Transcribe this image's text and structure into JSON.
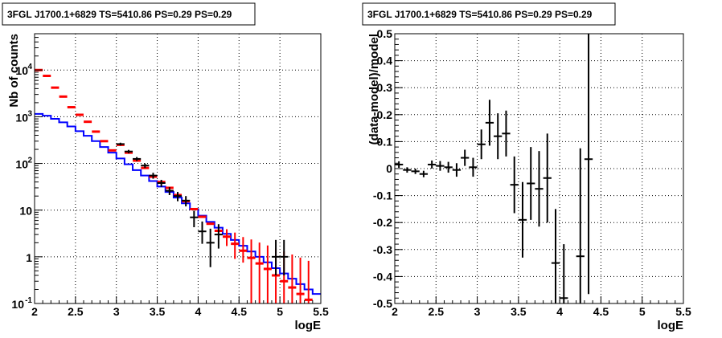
{
  "chart_data": [
    {
      "type": "line",
      "title": "3FGL J1700.1+6829 TS=5410.86 PS=0.29 PS=0.29",
      "xlabel": "logE",
      "ylabel": "Nb of counts",
      "xlim": [
        2,
        5.5
      ],
      "ylim": [
        0.1,
        60000
      ],
      "yscale": "log",
      "grid": true,
      "x_ticks": [
        "2",
        "2.5",
        "3",
        "3.5",
        "4",
        "4.5",
        "5",
        "5.5"
      ],
      "y_ticks": [
        {
          "value": 0.1,
          "base": "10",
          "exp": "-1"
        },
        {
          "value": 1,
          "base": "1",
          "exp": ""
        },
        {
          "value": 10,
          "base": "10",
          "exp": ""
        },
        {
          "value": 100,
          "base": "10",
          "exp": "2"
        },
        {
          "value": 1000,
          "base": "10",
          "exp": "3"
        },
        {
          "value": 10000,
          "base": "10",
          "exp": "4"
        }
      ],
      "series": [
        {
          "color": "#0000ff",
          "style": "histogram",
          "bins": [
            2.0,
            2.1,
            2.2,
            2.3,
            2.4,
            2.5,
            2.6,
            2.7,
            2.8,
            2.9,
            3.0,
            3.1,
            3.2,
            3.3,
            3.4,
            3.5,
            3.6,
            3.7,
            3.8,
            3.9,
            4.0,
            4.1,
            4.2,
            4.3,
            4.4,
            4.5,
            4.6,
            4.7,
            4.8,
            4.9,
            5.0,
            5.1,
            5.2,
            5.3,
            5.4,
            5.5
          ],
          "values": [
            1150,
            1050,
            900,
            760,
            620,
            490,
            390,
            300,
            225,
            170,
            128,
            96,
            72,
            55,
            42,
            32,
            24.5,
            18.5,
            14,
            10.5,
            7.6,
            5.6,
            4.2,
            3.1,
            2.3,
            1.72,
            1.3,
            1.0,
            0.76,
            0.57,
            0.44,
            0.34,
            0.26,
            0.2,
            0.16
          ]
        },
        {
          "color": "#ff0000",
          "style": "markers",
          "x": [
            2.05,
            2.15,
            2.25,
            2.35,
            2.45,
            2.55,
            2.65,
            2.75,
            2.85,
            2.95,
            3.05,
            3.15,
            3.25,
            3.35,
            3.45,
            3.55,
            3.65,
            3.75,
            3.85,
            3.95,
            4.05,
            4.15,
            4.25,
            4.35,
            4.45,
            4.55,
            4.65,
            4.75,
            4.85,
            4.95,
            5.05,
            5.15,
            5.25,
            5.35
          ],
          "y": [
            10000,
            7500,
            4200,
            2700,
            1600,
            1100,
            780,
            480,
            300,
            190,
            250,
            170,
            115,
            80,
            52,
            40,
            30,
            21,
            15.5,
            10.5,
            7.2,
            5.1,
            3.6,
            2.7,
            1.9,
            1.35,
            0.95,
            0.72,
            0.55,
            0.4,
            0.3,
            0.22,
            0.16,
            0.12
          ],
          "err_low": [
            0,
            0,
            0,
            0,
            0,
            0,
            0,
            0,
            0,
            0,
            0,
            0,
            0,
            0,
            0,
            0,
            0,
            0,
            0,
            0,
            0,
            0,
            0,
            1.0,
            1.0,
            0.6,
            0.95,
            0.72,
            0.55,
            0.4,
            0.3,
            0.22,
            0.16,
            0.12
          ],
          "err_high": [
            0,
            0,
            0,
            0,
            0,
            0,
            0,
            0,
            0,
            0,
            0,
            0,
            0,
            0,
            0,
            0,
            0,
            0,
            0,
            0,
            0,
            0,
            0,
            1.2,
            1.4,
            1.3,
            1.4,
            1.3,
            1.2,
            1.1,
            1.0,
            0.9,
            0.8,
            0.7
          ]
        },
        {
          "color": "#000000",
          "style": "errorbars",
          "x": [
            3.05,
            3.15,
            3.25,
            3.35,
            3.45,
            3.55,
            3.65,
            3.75,
            3.85,
            3.95,
            4.05,
            4.15,
            4.25,
            4.95,
            5.05
          ],
          "y": [
            260,
            180,
            125,
            90,
            55,
            38,
            26,
            20,
            16,
            7,
            3.5,
            2.0,
            3.0,
            1.0,
            1.0
          ],
          "err_low": [
            18,
            15,
            12,
            10,
            8,
            6.5,
            5,
            4.5,
            4,
            2.7,
            1.6,
            1.4,
            1.5,
            0.6,
            0.6
          ],
          "err_high": [
            18,
            15,
            12,
            10,
            8,
            6.5,
            5,
            4.5,
            4,
            2.7,
            2.2,
            2.0,
            2.0,
            1.3,
            1.3
          ],
          "xerr": 0.05
        }
      ]
    },
    {
      "type": "scatter",
      "title": "3FGL J1700.1+6829 TS=5410.86 PS=0.29 PS=0.29",
      "xlabel": "logE",
      "ylabel": "(data-model)/model",
      "xlim": [
        2,
        5.5
      ],
      "ylim": [
        -0.5,
        0.5
      ],
      "grid": true,
      "x_ticks": [
        "2",
        "2.5",
        "3",
        "3.5",
        "4",
        "4.5",
        "5",
        "5.5"
      ],
      "y_ticks": [
        "-0.5",
        "-0.4",
        "-0.3",
        "-0.2",
        "-0.1",
        "0",
        "0.1",
        "0.2",
        "0.3",
        "0.4",
        "0.5"
      ],
      "series": [
        {
          "color": "#000000",
          "x": [
            2.05,
            2.15,
            2.25,
            2.35,
            2.45,
            2.55,
            2.65,
            2.75,
            2.85,
            2.95,
            3.05,
            3.15,
            3.25,
            3.35,
            3.45,
            3.55,
            3.65,
            3.75,
            3.85,
            3.95,
            4.05,
            4.25,
            4.35
          ],
          "y": [
            0.015,
            -0.005,
            -0.01,
            -0.02,
            0.015,
            0.01,
            0.005,
            -0.005,
            0.04,
            0.005,
            0.09,
            0.17,
            0.12,
            0.13,
            -0.06,
            -0.19,
            -0.055,
            -0.075,
            -0.035,
            -0.35,
            -0.48,
            -0.325,
            0.035
          ],
          "err": [
            0.012,
            0.01,
            0.01,
            0.012,
            0.015,
            0.018,
            0.02,
            0.025,
            0.03,
            0.035,
            0.055,
            0.085,
            0.085,
            0.085,
            0.105,
            0.14,
            0.135,
            0.14,
            0.165,
            0.2,
            0.2,
            0.4,
            0.5
          ],
          "xerr": 0.05
        }
      ]
    }
  ]
}
